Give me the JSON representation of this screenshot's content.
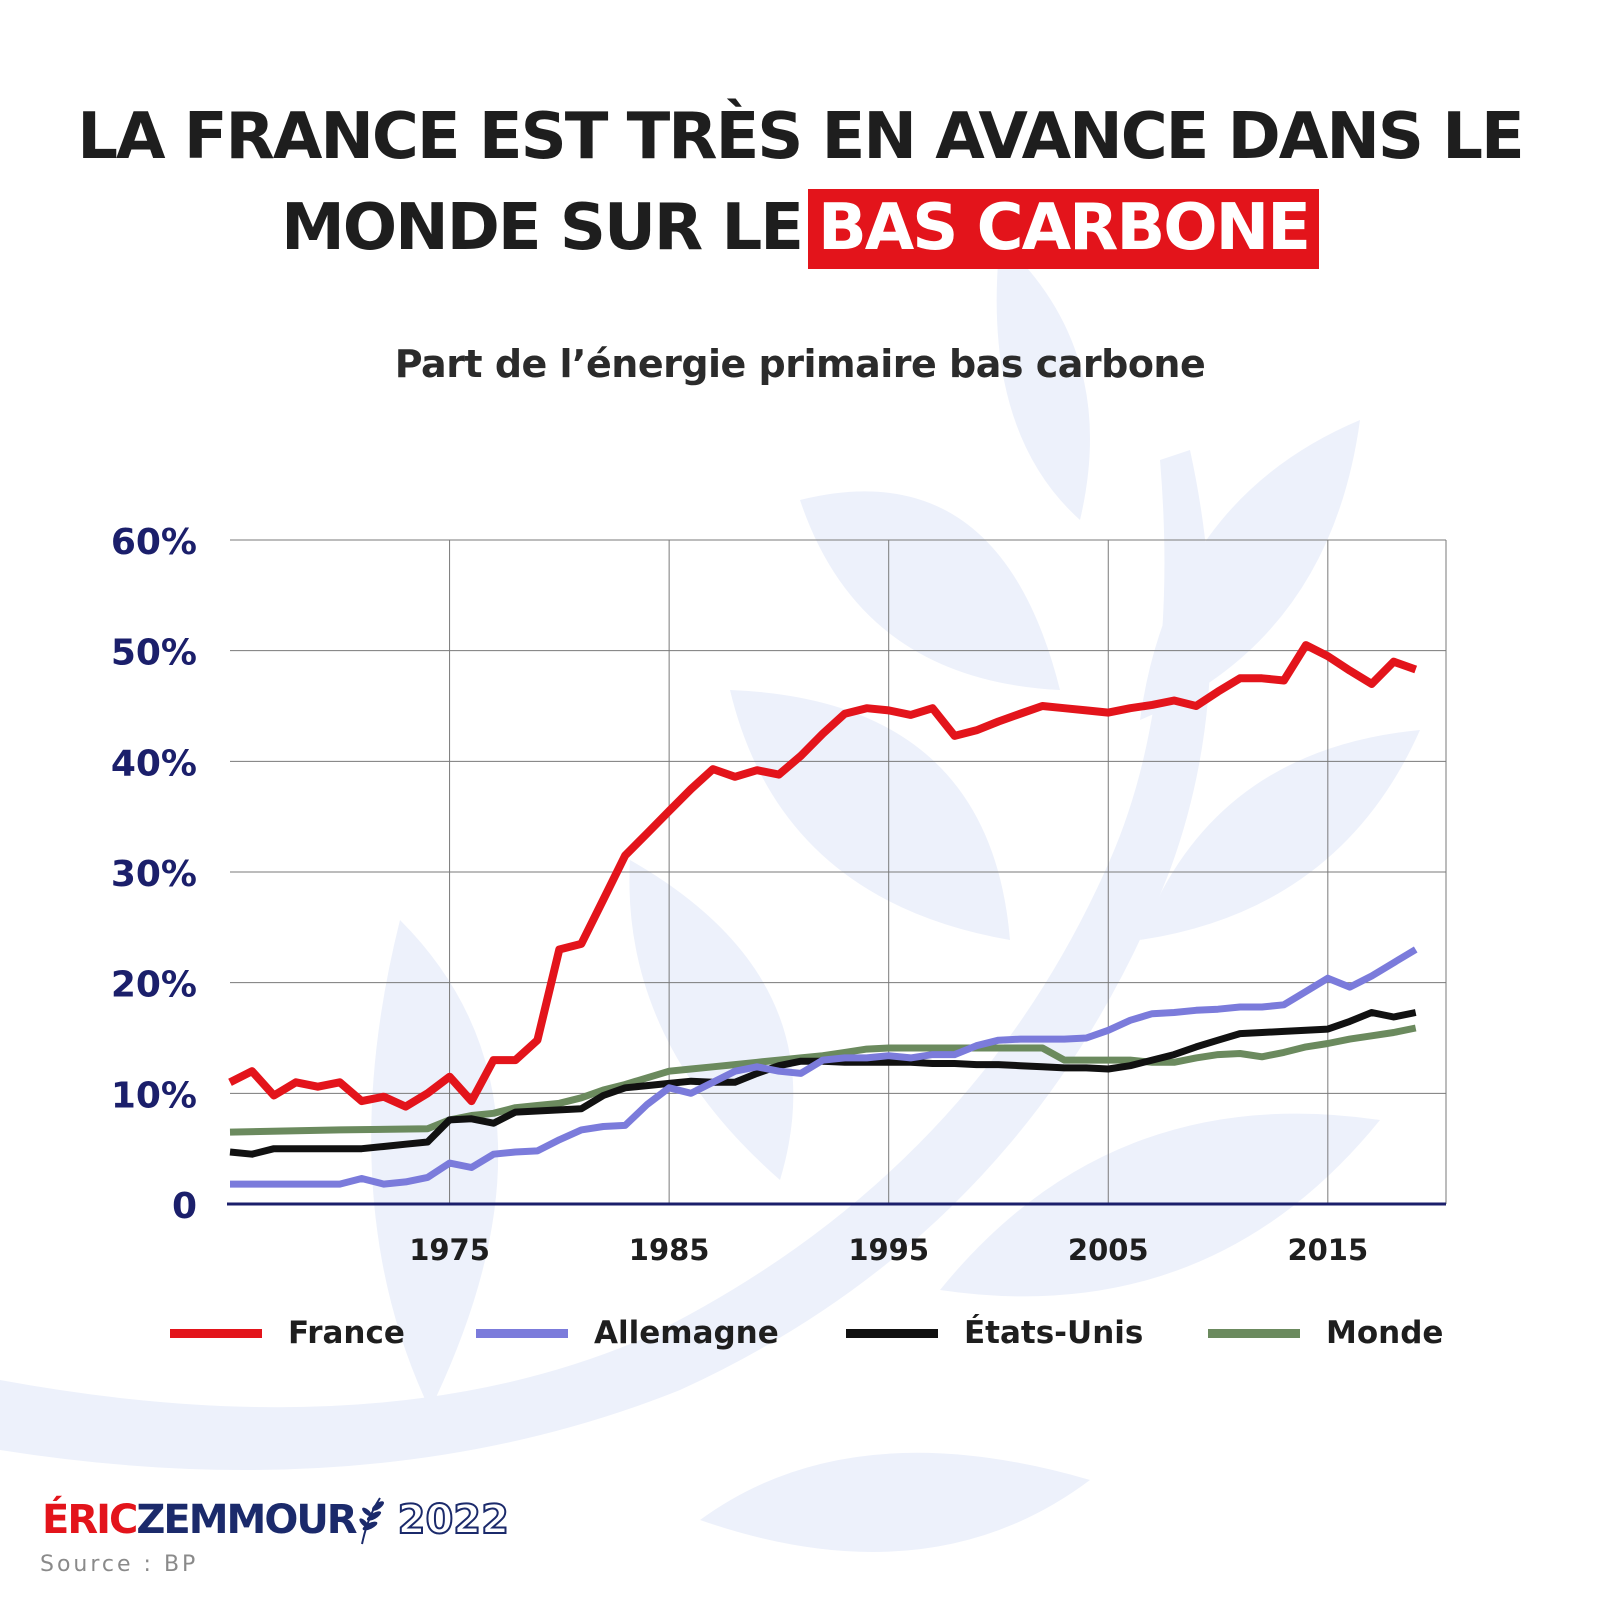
{
  "headline": {
    "line1": "LA FRANCE EST TRÈS EN AVANCE DANS LE",
    "line2_prefix": "MONDE SUR LE",
    "highlight": "BAS CARBONE"
  },
  "colors": {
    "france": "#e3141b",
    "allemagne": "#7b7bdb",
    "etats_unis": "#111111",
    "monde": "#6b8a5e",
    "axis_labels": "#1b1f6b",
    "highlight_bg": "#e3141b",
    "background_leaves": "#edf1fb"
  },
  "chart_data": {
    "type": "line",
    "title": "Part de l’énergie primaire bas carbone",
    "xlabel": "",
    "ylabel": "",
    "xlim": [
      1965,
      2019
    ],
    "ylim": [
      0,
      60
    ],
    "xticks": [
      1975,
      1985,
      1995,
      2005,
      2015
    ],
    "xtick_labels": [
      "1975",
      "1985",
      "1995",
      "2005",
      "2015"
    ],
    "yticks": [
      0,
      10,
      20,
      30,
      40,
      50,
      60
    ],
    "ytick_labels": [
      "0",
      "10%",
      "20%",
      "30%",
      "40%",
      "50%",
      "60%"
    ],
    "grid": true,
    "legend_position": "bottom",
    "series": [
      {
        "name": "France",
        "color_key": "france",
        "points": [
          [
            1965,
            11
          ],
          [
            1966,
            12
          ],
          [
            1967,
            9.8
          ],
          [
            1968,
            11
          ],
          [
            1969,
            10.6
          ],
          [
            1970,
            11
          ],
          [
            1971,
            9.3
          ],
          [
            1972,
            9.7
          ],
          [
            1973,
            8.8
          ],
          [
            1974,
            10
          ],
          [
            1975,
            11.5
          ],
          [
            1976,
            9.3
          ],
          [
            1977,
            13
          ],
          [
            1978,
            13
          ],
          [
            1979,
            14.8
          ],
          [
            1980,
            23
          ],
          [
            1981,
            23.5
          ],
          [
            1982,
            27.5
          ],
          [
            1983,
            31.5
          ],
          [
            1984,
            33.5
          ],
          [
            1985,
            35.5
          ],
          [
            1986,
            37.5
          ],
          [
            1987,
            39.3
          ],
          [
            1988,
            38.6
          ],
          [
            1989,
            39.2
          ],
          [
            1990,
            38.8
          ],
          [
            1991,
            40.5
          ],
          [
            1992,
            42.5
          ],
          [
            1993,
            44.3
          ],
          [
            1994,
            44.8
          ],
          [
            1995,
            44.6
          ],
          [
            1996,
            44.2
          ],
          [
            1997,
            44.8
          ],
          [
            1998,
            42.3
          ],
          [
            1999,
            42.8
          ],
          [
            2000,
            43.6
          ],
          [
            2001,
            44.3
          ],
          [
            2002,
            45
          ],
          [
            2003,
            44.8
          ],
          [
            2004,
            44.6
          ],
          [
            2005,
            44.4
          ],
          [
            2006,
            44.8
          ],
          [
            2007,
            45.1
          ],
          [
            2008,
            45.5
          ],
          [
            2009,
            45
          ],
          [
            2010,
            46.3
          ],
          [
            2011,
            47.5
          ],
          [
            2012,
            47.5
          ],
          [
            2013,
            47.3
          ],
          [
            2014,
            50.5
          ],
          [
            2015,
            49.5
          ],
          [
            2016,
            48.2
          ],
          [
            2017,
            47
          ],
          [
            2018,
            49
          ],
          [
            2019,
            48.3
          ]
        ]
      },
      {
        "name": "Allemagne",
        "color_key": "allemagne",
        "points": [
          [
            1965,
            1.8
          ],
          [
            1970,
            1.8
          ],
          [
            1971,
            2.3
          ],
          [
            1972,
            1.8
          ],
          [
            1973,
            2
          ],
          [
            1974,
            2.4
          ],
          [
            1975,
            3.7
          ],
          [
            1976,
            3.3
          ],
          [
            1977,
            4.5
          ],
          [
            1978,
            4.7
          ],
          [
            1979,
            4.8
          ],
          [
            1980,
            5.8
          ],
          [
            1981,
            6.7
          ],
          [
            1982,
            7
          ],
          [
            1983,
            7.1
          ],
          [
            1984,
            9
          ],
          [
            1985,
            10.5
          ],
          [
            1986,
            10
          ],
          [
            1987,
            11
          ],
          [
            1988,
            12
          ],
          [
            1989,
            12.4
          ],
          [
            1990,
            12
          ],
          [
            1991,
            11.8
          ],
          [
            1992,
            13
          ],
          [
            1993,
            13.2
          ],
          [
            1994,
            13.2
          ],
          [
            1995,
            13.4
          ],
          [
            1996,
            13.2
          ],
          [
            1997,
            13.5
          ],
          [
            1998,
            13.5
          ],
          [
            1999,
            14.3
          ],
          [
            2000,
            14.8
          ],
          [
            2001,
            14.9
          ],
          [
            2002,
            14.9
          ],
          [
            2003,
            14.9
          ],
          [
            2004,
            15
          ],
          [
            2005,
            15.7
          ],
          [
            2006,
            16.6
          ],
          [
            2007,
            17.2
          ],
          [
            2008,
            17.3
          ],
          [
            2009,
            17.5
          ],
          [
            2010,
            17.6
          ],
          [
            2011,
            17.8
          ],
          [
            2012,
            17.8
          ],
          [
            2013,
            18
          ],
          [
            2014,
            19.2
          ],
          [
            2015,
            20.4
          ],
          [
            2016,
            19.6
          ],
          [
            2017,
            20.6
          ],
          [
            2018,
            21.8
          ],
          [
            2019,
            23
          ]
        ]
      },
      {
        "name": "États-Unis",
        "color_key": "etats_unis",
        "points": [
          [
            1965,
            4.7
          ],
          [
            1966,
            4.5
          ],
          [
            1967,
            5
          ],
          [
            1968,
            5
          ],
          [
            1969,
            5
          ],
          [
            1970,
            5
          ],
          [
            1971,
            5
          ],
          [
            1972,
            5.2
          ],
          [
            1973,
            5.4
          ],
          [
            1974,
            5.6
          ],
          [
            1975,
            7.6
          ],
          [
            1976,
            7.7
          ],
          [
            1977,
            7.3
          ],
          [
            1978,
            8.3
          ],
          [
            1979,
            8.4
          ],
          [
            1980,
            8.5
          ],
          [
            1981,
            8.6
          ],
          [
            1982,
            9.8
          ],
          [
            1983,
            10.5
          ],
          [
            1984,
            10.7
          ],
          [
            1985,
            10.9
          ],
          [
            1986,
            11.1
          ],
          [
            1987,
            11
          ],
          [
            1988,
            11
          ],
          [
            1989,
            11.8
          ],
          [
            1990,
            12.5
          ],
          [
            1991,
            12.9
          ],
          [
            1992,
            12.9
          ],
          [
            1993,
            12.8
          ],
          [
            1994,
            12.8
          ],
          [
            1995,
            12.8
          ],
          [
            1996,
            12.8
          ],
          [
            1997,
            12.7
          ],
          [
            1998,
            12.7
          ],
          [
            1999,
            12.6
          ],
          [
            2000,
            12.6
          ],
          [
            2001,
            12.5
          ],
          [
            2002,
            12.4
          ],
          [
            2003,
            12.3
          ],
          [
            2004,
            12.3
          ],
          [
            2005,
            12.2
          ],
          [
            2006,
            12.5
          ],
          [
            2007,
            13
          ],
          [
            2008,
            13.5
          ],
          [
            2009,
            14.2
          ],
          [
            2010,
            14.8
          ],
          [
            2011,
            15.4
          ],
          [
            2012,
            15.5
          ],
          [
            2013,
            15.6
          ],
          [
            2014,
            15.7
          ],
          [
            2015,
            15.8
          ],
          [
            2016,
            16.5
          ],
          [
            2017,
            17.3
          ],
          [
            2018,
            16.9
          ],
          [
            2019,
            17.3
          ]
        ]
      },
      {
        "name": "Monde",
        "color_key": "monde",
        "points": [
          [
            1965,
            6.5
          ],
          [
            1970,
            6.7
          ],
          [
            1974,
            6.8
          ],
          [
            1975,
            7.6
          ],
          [
            1976,
            8
          ],
          [
            1977,
            8.2
          ],
          [
            1978,
            8.7
          ],
          [
            1979,
            8.9
          ],
          [
            1980,
            9.1
          ],
          [
            1981,
            9.6
          ],
          [
            1982,
            10.3
          ],
          [
            1983,
            10.8
          ],
          [
            1984,
            11.4
          ],
          [
            1985,
            12
          ],
          [
            1986,
            12.2
          ],
          [
            1987,
            12.4
          ],
          [
            1988,
            12.6
          ],
          [
            1989,
            12.8
          ],
          [
            1990,
            13
          ],
          [
            1991,
            13.2
          ],
          [
            1992,
            13.4
          ],
          [
            1993,
            13.7
          ],
          [
            1994,
            14
          ],
          [
            1995,
            14.1
          ],
          [
            1996,
            14.1
          ],
          [
            1997,
            14.1
          ],
          [
            1998,
            14.1
          ],
          [
            1999,
            14.1
          ],
          [
            2000,
            14.1
          ],
          [
            2001,
            14.1
          ],
          [
            2002,
            14.1
          ],
          [
            2003,
            13
          ],
          [
            2004,
            13
          ],
          [
            2005,
            13
          ],
          [
            2006,
            13
          ],
          [
            2007,
            12.8
          ],
          [
            2008,
            12.8
          ],
          [
            2009,
            13.2
          ],
          [
            2010,
            13.5
          ],
          [
            2011,
            13.6
          ],
          [
            2012,
            13.3
          ],
          [
            2013,
            13.7
          ],
          [
            2014,
            14.2
          ],
          [
            2015,
            14.5
          ],
          [
            2016,
            14.9
          ],
          [
            2017,
            15.2
          ],
          [
            2018,
            15.5
          ],
          [
            2019,
            15.9
          ]
        ]
      }
    ]
  },
  "brand": {
    "first": "ÉRIC",
    "last": "ZEMMOUR",
    "year": "2022"
  },
  "source": "Source : BP"
}
